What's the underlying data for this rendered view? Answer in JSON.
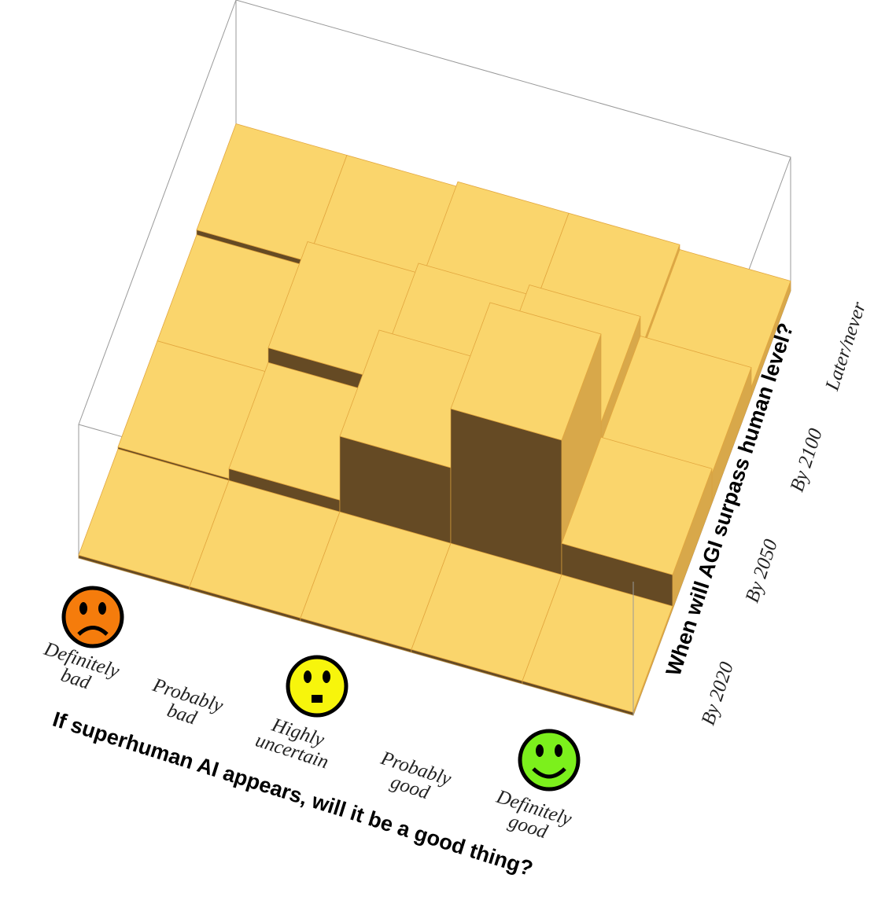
{
  "chart_data": {
    "type": "bar3d",
    "x_label": "If superhuman AI appears, will it be a good thing?",
    "y_label": "When will AGI surpass human level?",
    "x_categories": [
      "Definitely bad",
      "Probably bad",
      "Highly uncertain",
      "Probably good",
      "Definitely good"
    ],
    "y_categories": [
      "By 2020",
      "By 2050",
      "By 2100",
      "Later/never"
    ],
    "values": [
      [
        0.3,
        0.3,
        0.3,
        0.3,
        0.3
      ],
      [
        0.5,
        1.5,
        8,
        14,
        3.5
      ],
      [
        0.5,
        3,
        4,
        5,
        3
      ],
      [
        1,
        1,
        1.5,
        1.5,
        1
      ]
    ],
    "colors": {
      "top": "#fad56c",
      "front": "#654a24",
      "side": "#d8a84a"
    }
  }
}
